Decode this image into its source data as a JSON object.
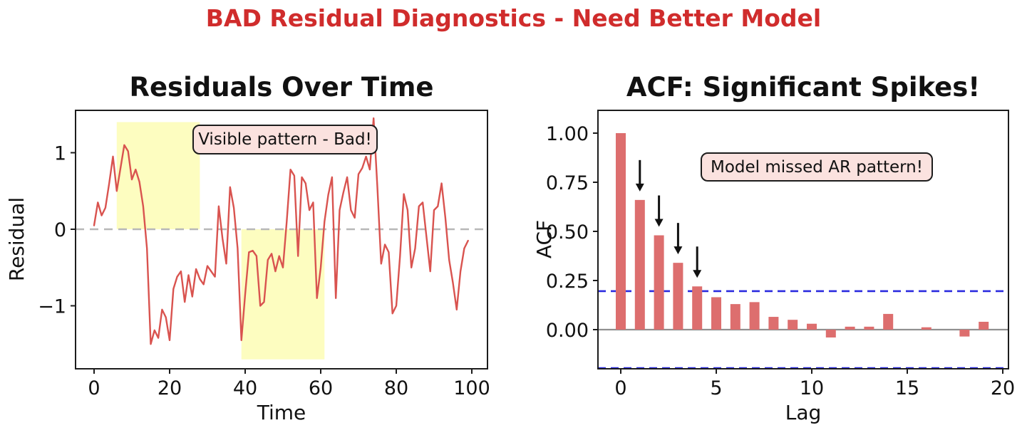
{
  "figure": {
    "suptitle": "BAD Residual Diagnostics - Need Better Model",
    "suptitle_color": "#d02c2c",
    "background": "#ffffff"
  },
  "chart_data": [
    {
      "type": "line",
      "title": "Residuals Over Time",
      "xlabel": "Time",
      "ylabel": "Residual",
      "xlim": [
        -4.9,
        104.2
      ],
      "ylim": [
        -1.82,
        1.55
      ],
      "xticks": [
        0,
        20,
        40,
        60,
        80,
        100
      ],
      "xtick_labels": [
        "0",
        "20",
        "40",
        "60",
        "80",
        "100"
      ],
      "yticks": [
        1,
        0,
        -1
      ],
      "ytick_labels": [
        "1",
        "0",
        "−1"
      ],
      "grid": "off",
      "line_color": "#d9534f",
      "zero_line": {
        "y": 0,
        "color": "#b8b8b8",
        "style": "dashed"
      },
      "highlight_color": "#fdfdc0",
      "highlight_regions": [
        {
          "x0": 6,
          "x1": 28,
          "y0": 0,
          "y1": 1.4
        },
        {
          "x0": 39,
          "x1": 61,
          "y0": -1.7,
          "y1": 0
        }
      ],
      "annotation": {
        "text": "Visible pattern - Bad!",
        "bg": "#fbe2df"
      },
      "x_start": 0,
      "x_step": 1,
      "n_points": 100,
      "y": [
        0.05,
        0.35,
        0.18,
        0.28,
        0.6,
        0.95,
        0.5,
        0.8,
        1.1,
        1.02,
        0.65,
        0.78,
        0.62,
        0.3,
        -0.25,
        -1.5,
        -1.32,
        -1.42,
        -1.05,
        -1.15,
        -1.45,
        -0.78,
        -0.62,
        -0.55,
        -0.95,
        -0.6,
        -0.88,
        -0.52,
        -0.65,
        -0.72,
        -0.48,
        -0.55,
        -0.62,
        0.3,
        -0.12,
        -0.45,
        0.55,
        0.28,
        -0.25,
        -1.45,
        -0.85,
        -0.3,
        -0.28,
        -0.35,
        -1.0,
        -0.95,
        -0.4,
        -0.32,
        -0.55,
        -0.35,
        -0.5,
        0.1,
        0.78,
        0.7,
        -0.35,
        0.68,
        0.6,
        0.25,
        0.35,
        -0.9,
        -0.5,
        0.1,
        0.45,
        0.68,
        -0.9,
        0.25,
        0.48,
        0.68,
        0.25,
        0.15,
        0.72,
        0.8,
        0.95,
        0.78,
        1.45,
        0.55,
        -0.45,
        -0.2,
        -0.3,
        -1.1,
        -1.0,
        -0.35,
        0.46,
        0.25,
        -0.5,
        -0.25,
        0.3,
        0.35,
        -0.1,
        -0.55,
        0.25,
        0.3,
        0.6,
        0.15,
        -0.4,
        -0.7,
        -1.05,
        -0.55,
        -0.25,
        -0.15
      ]
    },
    {
      "type": "bar",
      "title": "ACF: Significant Spikes!",
      "xlabel": "Lag",
      "ylabel": "ACF",
      "xlim": [
        -1.25,
        21.0
      ],
      "ylim": [
        -0.21,
        1.115
      ],
      "xticks": [
        0,
        5,
        10,
        15,
        20
      ],
      "xtick_labels": [
        "0",
        "5",
        "10",
        "15",
        "20"
      ],
      "yticks": [
        1.0,
        0.75,
        0.5,
        0.25,
        0.0
      ],
      "ytick_labels": [
        "1.00",
        "0.75",
        "0.50",
        "0.25",
        "0.00"
      ],
      "grid": "off",
      "bar_color": "#dd6e6e",
      "lags": [
        0,
        1,
        2,
        3,
        4,
        5,
        6,
        7,
        8,
        9,
        10,
        11,
        12,
        13,
        14,
        15,
        16,
        17,
        18,
        19
      ],
      "values": [
        1.0,
        0.66,
        0.48,
        0.34,
        0.22,
        0.165,
        0.13,
        0.14,
        0.065,
        0.05,
        0.03,
        -0.04,
        0.015,
        0.015,
        0.08,
        0.0,
        0.012,
        0.0,
        -0.035,
        0.04
      ],
      "significance_level": 0.196,
      "significance_line_color": "#2b2bdf",
      "significance_line_style": "dashed",
      "zero_line_color": "#909090",
      "arrow_lags": [
        1,
        2,
        3,
        4
      ],
      "annotation": {
        "text": "Model missed AR pattern!",
        "bg": "#fbe2df"
      }
    }
  ]
}
